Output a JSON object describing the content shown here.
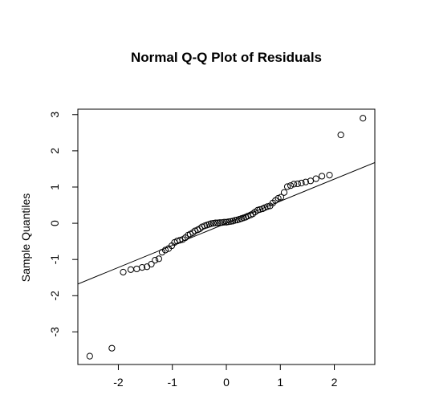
{
  "chart_data": {
    "type": "scatter",
    "title": "Normal Q-Q Plot of Residuals",
    "xlabel": "",
    "ylabel": "Sample Quantiles",
    "xlim": [
      -2.75,
      2.75
    ],
    "ylim": [
      -3.9,
      3.15
    ],
    "xticks": [
      -2,
      -1,
      0,
      1,
      2
    ],
    "xtick_labels": [
      "-2",
      "-1",
      "0",
      "1",
      "2"
    ],
    "yticks": [
      -3,
      -2,
      -1,
      0,
      1,
      2,
      3
    ],
    "ytick_labels": [
      "-3",
      "-2",
      "-1",
      "0",
      "1",
      "2",
      "3"
    ],
    "grid": false,
    "reference_line": {
      "intercept": 0.0,
      "slope": 0.61
    },
    "points": {
      "x": [
        -2.53,
        -2.12,
        -1.91,
        -1.77,
        -1.66,
        -1.56,
        -1.47,
        -1.39,
        -1.32,
        -1.25,
        -1.19,
        -1.13,
        -1.07,
        -1.01,
        -0.96,
        -0.91,
        -0.86,
        -0.81,
        -0.76,
        -0.71,
        -0.67,
        -0.62,
        -0.58,
        -0.53,
        -0.49,
        -0.45,
        -0.4,
        -0.36,
        -0.32,
        -0.28,
        -0.24,
        -0.2,
        -0.16,
        -0.12,
        -0.08,
        -0.04,
        0.0,
        0.04,
        0.08,
        0.12,
        0.16,
        0.2,
        0.24,
        0.28,
        0.32,
        0.36,
        0.4,
        0.45,
        0.49,
        0.53,
        0.58,
        0.62,
        0.67,
        0.71,
        0.76,
        0.81,
        0.86,
        0.91,
        0.96,
        1.01,
        1.07,
        1.13,
        1.19,
        1.25,
        1.32,
        1.39,
        1.47,
        1.56,
        1.66,
        1.77,
        1.91,
        2.12,
        2.53
      ],
      "y": [
        -3.67,
        -3.45,
        -1.35,
        -1.28,
        -1.26,
        -1.22,
        -1.2,
        -1.13,
        -1.02,
        -0.98,
        -0.8,
        -0.74,
        -0.7,
        -0.62,
        -0.53,
        -0.49,
        -0.47,
        -0.45,
        -0.4,
        -0.33,
        -0.3,
        -0.26,
        -0.21,
        -0.18,
        -0.15,
        -0.1,
        -0.07,
        -0.05,
        -0.03,
        -0.01,
        0.0,
        0.01,
        0.01,
        0.02,
        0.02,
        0.03,
        0.03,
        0.04,
        0.05,
        0.06,
        0.08,
        0.09,
        0.11,
        0.13,
        0.15,
        0.17,
        0.2,
        0.23,
        0.26,
        0.31,
        0.36,
        0.38,
        0.4,
        0.43,
        0.46,
        0.48,
        0.56,
        0.63,
        0.69,
        0.72,
        0.85,
        1.01,
        1.04,
        1.08,
        1.09,
        1.11,
        1.14,
        1.17,
        1.23,
        1.3,
        1.33,
        2.44,
        2.9
      ]
    }
  }
}
